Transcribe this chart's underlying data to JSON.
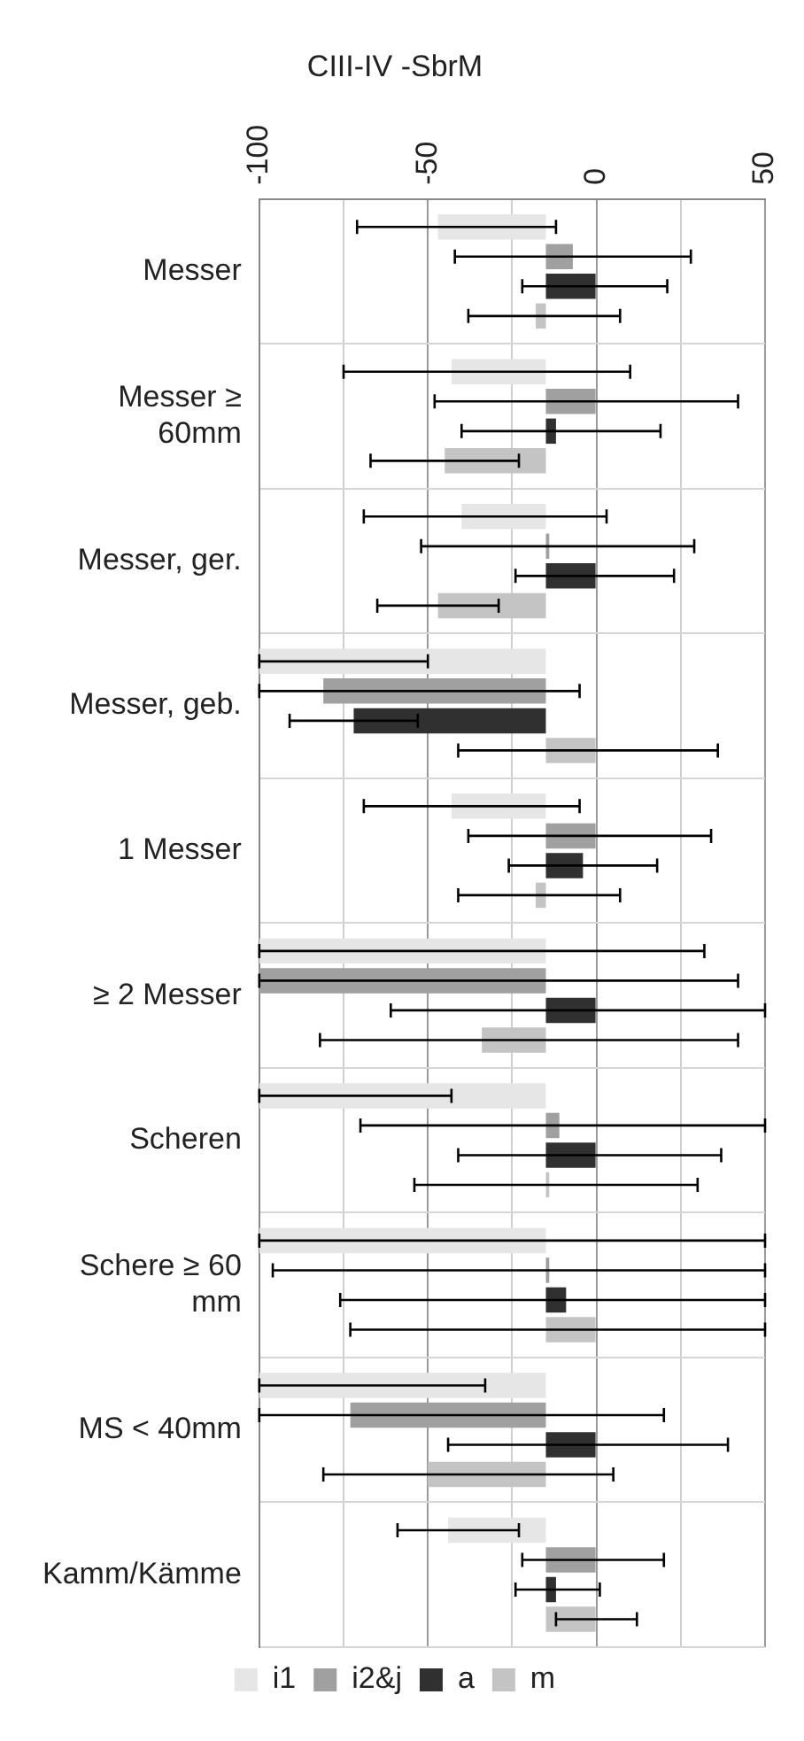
{
  "chart_data": {
    "type": "bar",
    "orientation": "horizontal",
    "title": "CIII-IV -SbrM",
    "categories": [
      "Messer",
      "Messer ≥ 60mm",
      "Messer, ger.",
      "Messer, geb.",
      "1 Messer",
      "≥ 2 Messer",
      "Scheren",
      "Schere ≥ 60 mm",
      "MS < 40mm",
      "Kamm/Kämme"
    ],
    "series": [
      {
        "name": "i1",
        "color": "#e6e6e6",
        "base": [
          -15,
          -15,
          -15,
          -15,
          -15,
          -15,
          -15,
          -15,
          -15,
          -15
        ],
        "values": [
          -32,
          -28,
          -25,
          -85,
          -28,
          -85,
          -85,
          -85,
          -85,
          -29
        ],
        "errors": [
          [
            -71,
            -12
          ],
          [
            -75,
            10
          ],
          [
            -69,
            3
          ],
          [
            -100,
            -50
          ],
          [
            -69,
            -5
          ],
          [
            -100,
            32
          ],
          [
            -100,
            -43
          ],
          [
            -100,
            50
          ],
          [
            -100,
            -33
          ],
          [
            -59,
            -23
          ]
        ]
      },
      {
        "name": "i2&j",
        "color": "#a0a0a0",
        "base": [
          -15,
          -15,
          -15,
          -15,
          -15,
          -15,
          -15,
          -15,
          -15,
          -15
        ],
        "values": [
          8,
          15,
          1,
          -66,
          15,
          -85,
          4,
          1,
          -58,
          15
        ],
        "errors": [
          [
            -42,
            28
          ],
          [
            -48,
            42
          ],
          [
            -52,
            29
          ],
          [
            -100,
            -5
          ],
          [
            -38,
            34
          ],
          [
            -100,
            42
          ],
          [
            -70,
            50
          ],
          [
            -96,
            50
          ],
          [
            -100,
            20
          ],
          [
            -22,
            20
          ]
        ]
      },
      {
        "name": "a",
        "color": "#303030",
        "base": [
          -15,
          -15,
          -15,
          -15,
          -15,
          -15,
          -15,
          -15,
          -15,
          -15
        ],
        "values": [
          15,
          3,
          15,
          -57,
          11,
          15,
          15,
          6,
          15,
          3
        ],
        "errors": [
          [
            -22,
            21
          ],
          [
            -40,
            19
          ],
          [
            -24,
            23
          ],
          [
            -91,
            -53
          ],
          [
            -26,
            18
          ],
          [
            -61,
            50
          ],
          [
            -41,
            37
          ],
          [
            -76,
            50
          ],
          [
            -44,
            39
          ],
          [
            -24,
            1
          ]
        ]
      },
      {
        "name": "m",
        "color": "#c4c4c4",
        "base": [
          -15,
          -15,
          -15,
          -15,
          -15,
          -15,
          -15,
          -15,
          -15,
          -15
        ],
        "values": [
          -3,
          -30,
          -32,
          15,
          -3,
          -19,
          1,
          15,
          -35,
          15
        ],
        "errors": [
          [
            -38,
            7
          ],
          [
            -67,
            -23
          ],
          [
            -65,
            -29
          ],
          [
            -41,
            36
          ],
          [
            -41,
            7
          ],
          [
            -82,
            42
          ],
          [
            -54,
            30
          ],
          [
            -73,
            50
          ],
          [
            -81,
            5
          ],
          [
            -12,
            12
          ]
        ]
      }
    ],
    "xlim": [
      -100,
      50
    ],
    "xticks": [
      -100,
      {
        "value": -75,
        "label": null
      },
      -50,
      {
        "value": -25,
        "label": null
      },
      0,
      {
        "value": 25,
        "label": null
      },
      50
    ],
    "grid": true,
    "legend": "bottom"
  }
}
